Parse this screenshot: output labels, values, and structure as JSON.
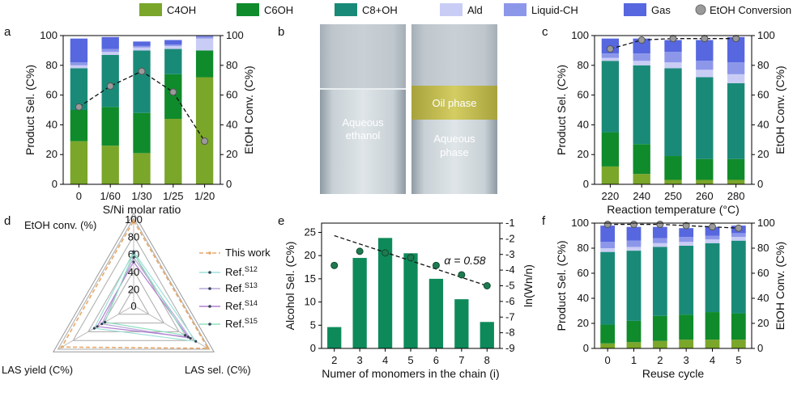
{
  "legend": {
    "items": [
      {
        "label": "C4OH",
        "color": "#7aa62a"
      },
      {
        "label": "C6OH",
        "color": "#0f8b2b"
      },
      {
        "label": "C8+OH",
        "color": "#1a8a78"
      },
      {
        "label": "Ald",
        "color": "#c9cdf5"
      },
      {
        "label": "Liquid-CH",
        "color": "#8d97ea"
      },
      {
        "label": "Gas",
        "color": "#5667df"
      }
    ],
    "conversion_label": "EtOH Conversion"
  },
  "chart_data": [
    {
      "panel": "a",
      "type": "bar",
      "xlabel": "S/Ni molar ratio",
      "ylabel": "Product Sel. (C%)",
      "y2label": "EtOH Conv. (C%)",
      "ylim": [
        0,
        100
      ],
      "y2lim": [
        0,
        100
      ],
      "yticks": [
        0,
        20,
        40,
        60,
        80,
        100
      ],
      "categories": [
        "0",
        "1/60",
        "1/30",
        "1/25",
        "1/20"
      ],
      "series": [
        {
          "name": "C4OH",
          "values": [
            29,
            26,
            21,
            44,
            72
          ]
        },
        {
          "name": "C6OH",
          "values": [
            21,
            26,
            27,
            30,
            18
          ]
        },
        {
          "name": "C8+OH",
          "values": [
            28,
            35,
            42,
            17,
            0
          ]
        },
        {
          "name": "Ald",
          "values": [
            2,
            2,
            2,
            2,
            8
          ]
        },
        {
          "name": "Liquid-CH",
          "values": [
            2,
            2,
            1,
            1,
            2
          ]
        },
        {
          "name": "Gas",
          "values": [
            16,
            8,
            3,
            3,
            0
          ]
        }
      ],
      "conversion": [
        52,
        66,
        76,
        62,
        29
      ]
    },
    {
      "panel": "c",
      "type": "bar",
      "xlabel": "Reaction temperature (°C)",
      "ylabel": "Product Sel. (C%)",
      "y2label": "EtOH Conv. (C%)",
      "ylim": [
        0,
        100
      ],
      "y2lim": [
        0,
        100
      ],
      "yticks": [
        0,
        20,
        40,
        60,
        80,
        100
      ],
      "categories": [
        "220",
        "240",
        "250",
        "260",
        "280"
      ],
      "series": [
        {
          "name": "C4OH",
          "values": [
            12,
            7,
            3,
            3,
            3
          ]
        },
        {
          "name": "C6OH",
          "values": [
            23,
            20,
            16,
            14,
            14
          ]
        },
        {
          "name": "C8+OH",
          "values": [
            48,
            53,
            59,
            55,
            51
          ]
        },
        {
          "name": "Ald",
          "values": [
            2,
            3,
            4,
            5,
            6
          ]
        },
        {
          "name": "Liquid-CH",
          "values": [
            3,
            5,
            7,
            6,
            8
          ]
        },
        {
          "name": "Gas",
          "values": [
            10,
            10,
            8,
            14,
            17
          ]
        }
      ],
      "conversion": [
        91,
        97,
        98,
        98,
        98
      ]
    },
    {
      "panel": "f",
      "type": "bar",
      "xlabel": "Reuse cycle",
      "ylabel": "Product Sel. (C%)",
      "y2label": "EtOH Conv. (C%)",
      "ylim": [
        0,
        100
      ],
      "y2lim": [
        0,
        100
      ],
      "yticks": [
        0,
        20,
        40,
        60,
        80,
        100
      ],
      "categories": [
        "0",
        "1",
        "2",
        "3",
        "4",
        "5"
      ],
      "series": [
        {
          "name": "C4OH",
          "values": [
            4,
            5,
            6,
            7,
            7,
            7
          ]
        },
        {
          "name": "C6OH",
          "values": [
            15,
            17,
            20,
            20,
            22,
            21
          ]
        },
        {
          "name": "C8+OH",
          "values": [
            58,
            56,
            55,
            55,
            55,
            58
          ]
        },
        {
          "name": "Ald",
          "values": [
            3,
            3,
            3,
            3,
            3,
            3
          ]
        },
        {
          "name": "Liquid-CH",
          "values": [
            5,
            5,
            4,
            4,
            3,
            3
          ]
        },
        {
          "name": "Gas",
          "values": [
            13,
            11,
            9,
            7,
            7,
            6
          ]
        }
      ],
      "conversion": [
        99,
        99,
        99,
        98,
        97,
        96
      ]
    },
    {
      "panel": "e",
      "type": "bar",
      "xlabel": "Numer of monomers in the chain (i)",
      "ylabel": "Alcohol Sel. (C%)",
      "y2label": "ln(Wn/n)",
      "ylim": [
        0,
        27
      ],
      "y2lim": [
        -9,
        -1
      ],
      "yticks": [
        0,
        5,
        10,
        15,
        20,
        25
      ],
      "y2ticks": [
        -1,
        -2,
        -3,
        -4,
        -5,
        -6,
        -7,
        -8,
        -9
      ],
      "categories": [
        "2",
        "3",
        "4",
        "5",
        "6",
        "7",
        "8"
      ],
      "values": [
        4.6,
        19.5,
        23.8,
        20.5,
        15.0,
        10.6,
        5.7
      ],
      "ln_points": [
        -3.7,
        -2.8,
        -2.9,
        -3.2,
        -3.7,
        -4.3,
        -5.0
      ],
      "fit_line": [
        -1.8,
        -5.0
      ],
      "annotation": "α = 0.58"
    },
    {
      "panel": "d",
      "type": "radar",
      "axes": [
        "EtOH conv. (%)",
        "LAS sel. (C%)",
        "LAS yield (C%)"
      ],
      "rings": [
        0,
        20,
        40,
        60,
        80,
        100
      ],
      "series": [
        {
          "name": "This work",
          "values": [
            97,
            98,
            95
          ],
          "color": "#e8a868"
        },
        {
          "name": "Ref.S12",
          "values": [
            62,
            82,
            52
          ],
          "color": "#9ee0d8"
        },
        {
          "name": "Ref.S13",
          "values": [
            55,
            75,
            42
          ],
          "color": "#b8a8d8"
        },
        {
          "name": "Ref.S14",
          "values": [
            50,
            72,
            48
          ],
          "color": "#b080d0"
        },
        {
          "name": "Ref.S15",
          "values": [
            60,
            68,
            38
          ],
          "color": "#8fe0c0"
        }
      ]
    }
  ],
  "panel_labels": [
    "a",
    "b",
    "c",
    "d",
    "e",
    "f"
  ],
  "photo": {
    "left_label_1": "Aqueous",
    "left_label_2": "ethanol",
    "oil_label": "Oil phase",
    "right_label_1": "Aqueous",
    "right_label_2": "phase"
  },
  "radar_legend": {
    "this_work": "This work",
    "refs": [
      {
        "base": "Ref.",
        "sup": "S12"
      },
      {
        "base": "Ref.",
        "sup": "S13"
      },
      {
        "base": "Ref.",
        "sup": "S14"
      },
      {
        "base": "Ref.",
        "sup": "S15"
      }
    ]
  },
  "colors": {
    "dark_green": "#0e8a5a",
    "conv_marker": "#9a9a9a"
  }
}
